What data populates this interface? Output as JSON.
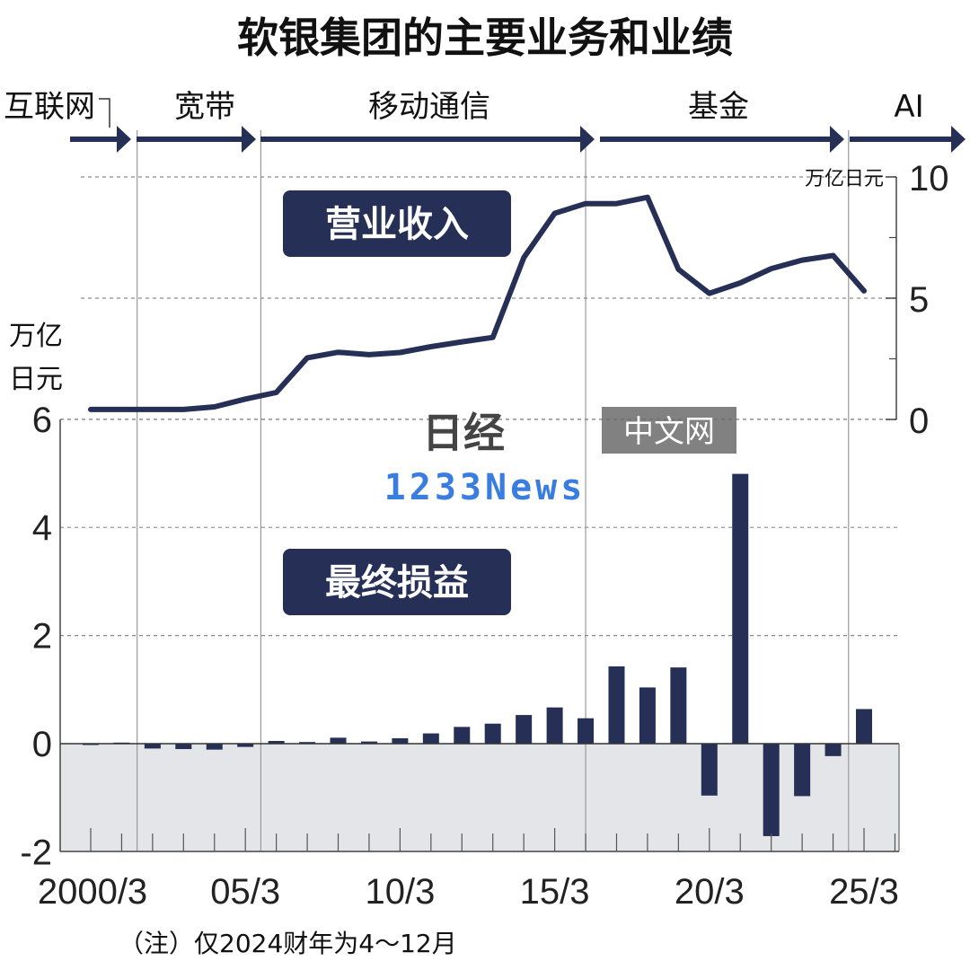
{
  "chart_data": {
    "title": "软银集团的主要业务和业绩",
    "eras": [
      {
        "label": "互联网",
        "start": 1999.5,
        "end": 2001.2
      },
      {
        "label": "宽带",
        "start": 2001.2,
        "end": 2005.2
      },
      {
        "label": "移动通信",
        "start": 2005.2,
        "end": 2016.0
      },
      {
        "label": "基金",
        "start": 2016.0,
        "end": 2024.0
      },
      {
        "label": "AI",
        "start": 2024.0,
        "end": 2026.3
      }
    ],
    "x_ticks": [
      "2000/3",
      "05/3",
      "10/3",
      "15/3",
      "20/3",
      "25/3"
    ],
    "x_tick_years": [
      2000,
      2005,
      2010,
      2015,
      2020,
      2025
    ],
    "revenue": {
      "type": "line",
      "label": "营业收入",
      "unit": "万亿日元",
      "y_ticks": [
        "10",
        "5",
        "0"
      ],
      "y_tick_values": [
        10,
        5,
        0
      ],
      "ylim": [
        0,
        10
      ],
      "x": [
        2000,
        2001,
        2002,
        2003,
        2004,
        2005,
        2006,
        2007,
        2008,
        2009,
        2010,
        2011,
        2012,
        2013,
        2014,
        2015,
        2016,
        2017,
        2018,
        2019,
        2020,
        2021,
        2022,
        2023,
        2024,
        2025
      ],
      "values": [
        0.41,
        0.41,
        0.41,
        0.41,
        0.52,
        0.84,
        1.11,
        2.54,
        2.77,
        2.67,
        2.76,
        3.0,
        3.2,
        3.38,
        6.67,
        8.5,
        8.9,
        8.9,
        9.16,
        6.19,
        5.2,
        5.63,
        6.22,
        6.57,
        6.76,
        5.3
      ]
    },
    "profit": {
      "type": "bar",
      "label": "最终损益",
      "unit": "万亿日元",
      "y_ticks": [
        "6",
        "4",
        "2",
        "0",
        "-2"
      ],
      "y_tick_values": [
        6,
        4,
        2,
        0,
        -2
      ],
      "ylim": [
        -2,
        6
      ],
      "x": [
        2000,
        2001,
        2002,
        2003,
        2004,
        2005,
        2006,
        2007,
        2008,
        2009,
        2010,
        2011,
        2012,
        2013,
        2014,
        2015,
        2016,
        2017,
        2018,
        2019,
        2020,
        2021,
        2022,
        2023,
        2024,
        2025
      ],
      "values": [
        0.0,
        0.02,
        -0.09,
        -0.1,
        -0.11,
        -0.06,
        0.05,
        0.03,
        0.11,
        0.04,
        0.1,
        0.19,
        0.31,
        0.37,
        0.53,
        0.67,
        0.47,
        1.43,
        1.04,
        1.41,
        -0.96,
        4.99,
        -1.71,
        -0.97,
        -0.23,
        0.64
      ],
      "colors": {
        "bar": "#263056",
        "negative_bg": "#e3e5e8"
      }
    },
    "note": "（注）仅2024财年为4～12月",
    "colors": {
      "navy": "#263056",
      "grid": "#8a8a8a"
    }
  },
  "watermarks": {
    "logo_text": "日经",
    "site_text": "中文网",
    "blue_text": "1233News"
  }
}
